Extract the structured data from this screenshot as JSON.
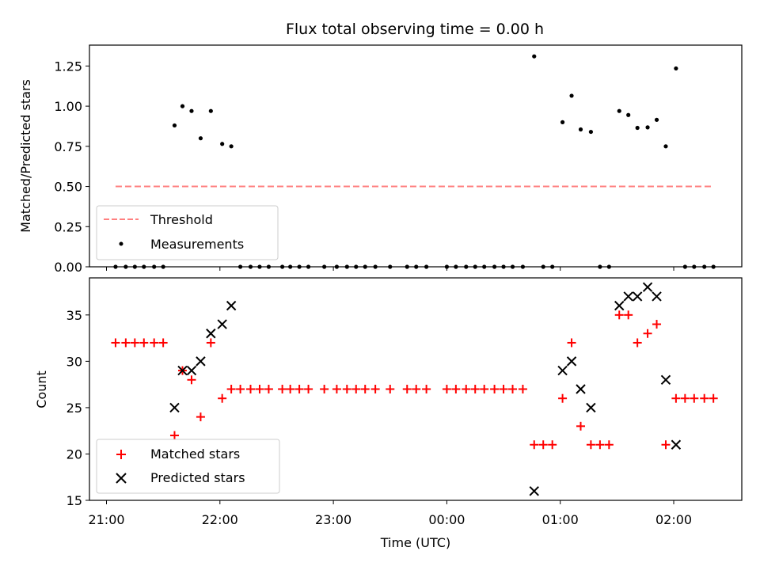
{
  "chart_data": [
    {
      "type": "scatter",
      "title": "Flux total observing time = 0.00 h",
      "xlabel": "",
      "ylabel": "Matched/Predicted stars",
      "xlim": [
        20.85,
        26.6
      ],
      "ylim": [
        0,
        1.38
      ],
      "yticks": [
        0.0,
        0.25,
        0.5,
        0.75,
        1.0,
        1.25
      ],
      "ytick_labels": [
        "0.00",
        "0.25",
        "0.50",
        "0.75",
        "1.00",
        "1.25"
      ],
      "legend": {
        "placement": "lower-left",
        "entries": [
          "Threshold",
          "Measurements"
        ]
      },
      "threshold": {
        "name": "Threshold",
        "value": 0.5,
        "x_range": [
          21.08,
          26.35
        ],
        "color": "#ff8080",
        "style": "dashed"
      },
      "series": [
        {
          "name": "Measurements",
          "color": "#000000",
          "marker": "dot",
          "points": [
            [
              21.08,
              0
            ],
            [
              21.17,
              0
            ],
            [
              21.25,
              0
            ],
            [
              21.33,
              0
            ],
            [
              21.42,
              0
            ],
            [
              21.5,
              0
            ],
            [
              21.6,
              0.88
            ],
            [
              21.67,
              1.0
            ],
            [
              21.75,
              0.97
            ],
            [
              21.83,
              0.8
            ],
            [
              21.92,
              0.97
            ],
            [
              22.02,
              0.765
            ],
            [
              22.1,
              0.75
            ],
            [
              22.18,
              0
            ],
            [
              22.27,
              0
            ],
            [
              22.35,
              0
            ],
            [
              22.43,
              0
            ],
            [
              22.55,
              0
            ],
            [
              22.62,
              0
            ],
            [
              22.7,
              0
            ],
            [
              22.78,
              0
            ],
            [
              22.92,
              0
            ],
            [
              23.03,
              0
            ],
            [
              23.12,
              0
            ],
            [
              23.2,
              0
            ],
            [
              23.28,
              0
            ],
            [
              23.37,
              0
            ],
            [
              23.5,
              0
            ],
            [
              23.65,
              0
            ],
            [
              23.73,
              0
            ],
            [
              23.82,
              0
            ],
            [
              24.0,
              0
            ],
            [
              24.08,
              0
            ],
            [
              24.17,
              0
            ],
            [
              24.25,
              0
            ],
            [
              24.33,
              0
            ],
            [
              24.42,
              0
            ],
            [
              24.5,
              0
            ],
            [
              24.58,
              0
            ],
            [
              24.67,
              0
            ],
            [
              24.77,
              1.31
            ],
            [
              24.85,
              0
            ],
            [
              24.93,
              0
            ],
            [
              25.02,
              0.9
            ],
            [
              25.1,
              1.065
            ],
            [
              25.18,
              0.855
            ],
            [
              25.27,
              0.84
            ],
            [
              25.35,
              0
            ],
            [
              25.43,
              0
            ],
            [
              25.52,
              0.97
            ],
            [
              25.6,
              0.945
            ],
            [
              25.68,
              0.865
            ],
            [
              25.77,
              0.868
            ],
            [
              25.85,
              0.915
            ],
            [
              25.93,
              0.75
            ],
            [
              26.02,
              1.235
            ],
            [
              26.1,
              0
            ],
            [
              26.18,
              0
            ],
            [
              26.27,
              0
            ],
            [
              26.35,
              0
            ]
          ]
        }
      ]
    },
    {
      "type": "scatter",
      "title": "",
      "xlabel": "Time (UTC)",
      "ylabel": "Count",
      "xlim": [
        20.85,
        26.6
      ],
      "ylim": [
        15,
        39
      ],
      "yticks": [
        15,
        20,
        25,
        30,
        35
      ],
      "ytick_labels": [
        "15",
        "20",
        "25",
        "30",
        "35"
      ],
      "xticks": [
        21,
        22,
        23,
        24,
        25,
        26
      ],
      "xtick_labels": [
        "21:00",
        "22:00",
        "23:00",
        "00:00",
        "01:00",
        "02:00"
      ],
      "legend": {
        "placement": "lower-left",
        "entries": [
          "Matched stars",
          "Predicted stars"
        ]
      },
      "series": [
        {
          "name": "Matched stars",
          "color": "#ff0000",
          "marker": "plus",
          "points": [
            [
              21.08,
              32
            ],
            [
              21.17,
              32
            ],
            [
              21.25,
              32
            ],
            [
              21.33,
              32
            ],
            [
              21.42,
              32
            ],
            [
              21.5,
              32
            ],
            [
              21.6,
              22
            ],
            [
              21.67,
              29
            ],
            [
              21.75,
              28
            ],
            [
              21.83,
              24
            ],
            [
              21.92,
              32
            ],
            [
              22.02,
              26
            ],
            [
              22.1,
              27
            ],
            [
              22.18,
              27
            ],
            [
              22.27,
              27
            ],
            [
              22.35,
              27
            ],
            [
              22.43,
              27
            ],
            [
              22.55,
              27
            ],
            [
              22.62,
              27
            ],
            [
              22.7,
              27
            ],
            [
              22.78,
              27
            ],
            [
              22.92,
              27
            ],
            [
              23.03,
              27
            ],
            [
              23.12,
              27
            ],
            [
              23.2,
              27
            ],
            [
              23.28,
              27
            ],
            [
              23.37,
              27
            ],
            [
              23.5,
              27
            ],
            [
              23.65,
              27
            ],
            [
              23.73,
              27
            ],
            [
              23.82,
              27
            ],
            [
              24.0,
              27
            ],
            [
              24.08,
              27
            ],
            [
              24.17,
              27
            ],
            [
              24.25,
              27
            ],
            [
              24.33,
              27
            ],
            [
              24.42,
              27
            ],
            [
              24.5,
              27
            ],
            [
              24.58,
              27
            ],
            [
              24.67,
              27
            ],
            [
              24.77,
              21
            ],
            [
              24.85,
              21
            ],
            [
              24.93,
              21
            ],
            [
              25.02,
              26
            ],
            [
              25.1,
              32
            ],
            [
              25.18,
              23
            ],
            [
              25.27,
              21
            ],
            [
              25.35,
              21
            ],
            [
              25.43,
              21
            ],
            [
              25.52,
              35
            ],
            [
              25.6,
              35
            ],
            [
              25.68,
              32
            ],
            [
              25.77,
              33
            ],
            [
              25.85,
              34
            ],
            [
              25.93,
              21
            ],
            [
              26.02,
              26
            ],
            [
              26.1,
              26
            ],
            [
              26.18,
              26
            ],
            [
              26.27,
              26
            ],
            [
              26.35,
              26
            ]
          ]
        },
        {
          "name": "Predicted stars",
          "color": "#000000",
          "marker": "x",
          "points": [
            [
              21.6,
              25
            ],
            [
              21.67,
              29
            ],
            [
              21.75,
              29
            ],
            [
              21.83,
              30
            ],
            [
              21.92,
              33
            ],
            [
              22.02,
              34
            ],
            [
              22.1,
              36
            ],
            [
              24.77,
              16
            ],
            [
              25.02,
              29
            ],
            [
              25.1,
              30
            ],
            [
              25.18,
              27
            ],
            [
              25.27,
              25
            ],
            [
              25.52,
              36
            ],
            [
              25.6,
              37
            ],
            [
              25.68,
              37
            ],
            [
              25.77,
              38
            ],
            [
              25.85,
              37
            ],
            [
              25.93,
              28
            ],
            [
              26.02,
              21
            ]
          ]
        }
      ]
    }
  ]
}
